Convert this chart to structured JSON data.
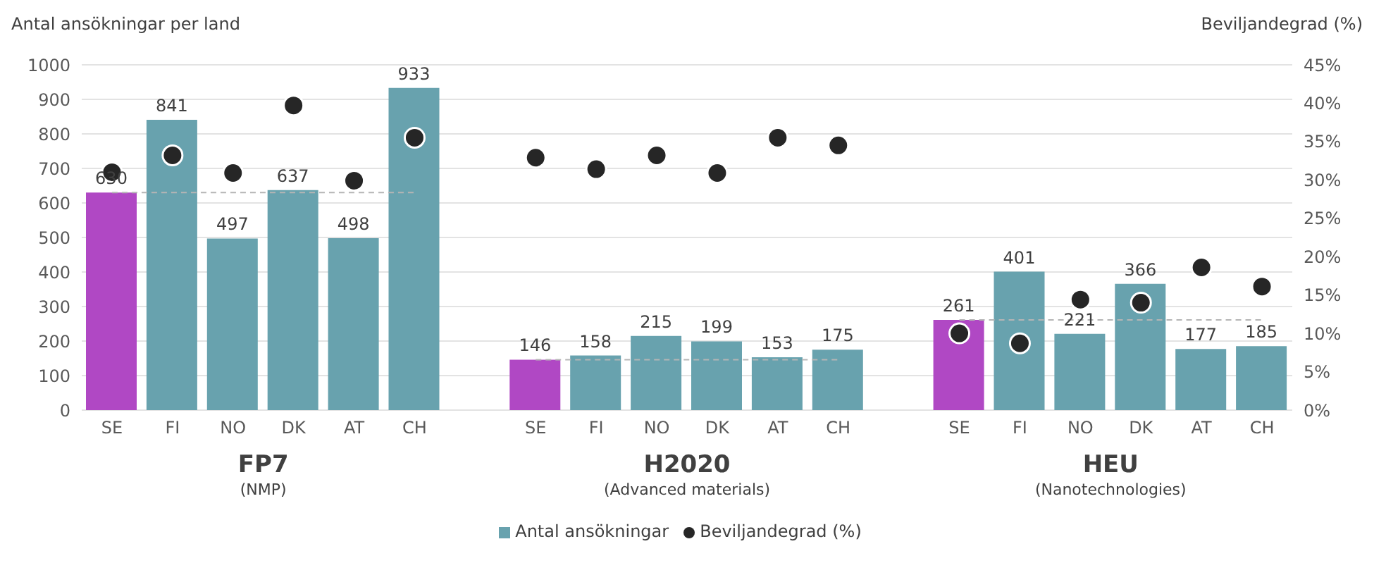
{
  "chart_data": {
    "type": "bar",
    "ylabel": "Antal ansökningar per land",
    "y2label": "Beviljandegrad (%)",
    "categories": [
      "SE",
      "FI",
      "NO",
      "DK",
      "AT",
      "CH",
      null,
      "SE",
      "FI",
      "NO",
      "DK",
      "AT",
      "CH",
      null,
      "SE",
      "FI",
      "NO",
      "DK",
      "AT",
      "CH"
    ],
    "series": [
      {
        "name": "Antal ansökningar",
        "color": "#68a2ae",
        "colors": [
          "#b048c4",
          "#68a2ae",
          "#68a2ae",
          "#68a2ae",
          "#68a2ae",
          "#68a2ae",
          null,
          "#b048c4",
          "#68a2ae",
          "#68a2ae",
          "#68a2ae",
          "#68a2ae",
          "#68a2ae",
          null,
          "#b048c4",
          "#68a2ae",
          "#68a2ae",
          "#68a2ae",
          "#68a2ae",
          "#68a2ae"
        ],
        "values": [
          630,
          841,
          497,
          637,
          498,
          933,
          null,
          146,
          158,
          215,
          199,
          153,
          175,
          null,
          261,
          401,
          221,
          366,
          177,
          185
        ],
        "value_labels": [
          "630",
          "841",
          "497",
          "637",
          "498",
          "933",
          null,
          "146",
          "158",
          "215",
          "199",
          "153",
          "175",
          null,
          "261",
          "401",
          "221",
          "366",
          "177",
          "185"
        ]
      },
      {
        "name": "Beviljandegrad (%)",
        "type": "scatter",
        "axis": "y2",
        "color": "#262626",
        "values": [
          31.0,
          33.2,
          30.9,
          39.7,
          29.9,
          35.5,
          null,
          32.9,
          31.4,
          33.2,
          30.9,
          35.5,
          34.5,
          null,
          10.0,
          8.7,
          14.4,
          14.0,
          18.6,
          16.1
        ]
      },
      {
        "type": "line",
        "line_style": "dashed",
        "marker": "none",
        "color": "#b5b5b5",
        "values": [
          630,
          630,
          630,
          630,
          630,
          630,
          null,
          146,
          146,
          146,
          146,
          146,
          146,
          null,
          261,
          261,
          261,
          261,
          261,
          261
        ]
      }
    ],
    "ylim": [
      0,
      1000
    ],
    "yticks": [
      0,
      100,
      200,
      300,
      400,
      500,
      600,
      700,
      800,
      900,
      1000
    ],
    "y2lim": [
      0,
      45
    ],
    "y2ticks": [
      {
        "value": 0,
        "label": "0%"
      },
      {
        "value": 5,
        "label": "5%"
      },
      {
        "value": 10,
        "label": "10%"
      },
      {
        "value": 15,
        "label": "15%"
      },
      {
        "value": 20,
        "label": "20%"
      },
      {
        "value": 25,
        "label": "25%"
      },
      {
        "value": 30,
        "label": "30%"
      },
      {
        "value": 35,
        "label": "35%"
      },
      {
        "value": 40,
        "label": "40%"
      },
      {
        "value": 45,
        "label": "45%"
      }
    ],
    "grid": "y",
    "legend": "bottom",
    "marker": "circle",
    "annotations": [
      "FP7",
      "(NMP)",
      "H2020",
      "(Advanced materials)",
      "HEU",
      "(Nanotechnologies)"
    ]
  }
}
